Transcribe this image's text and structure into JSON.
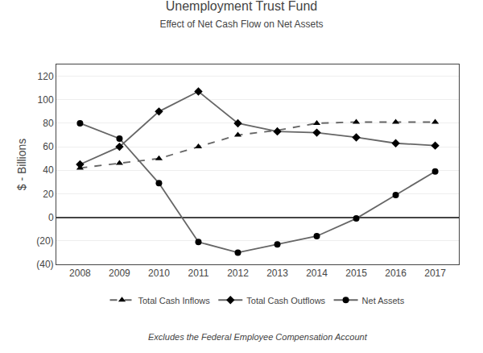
{
  "chart_data": {
    "type": "line",
    "title": "Unemployment Trust Fund",
    "subtitle": "Effect of Net Cash Flow on Net Assets",
    "annotations": [
      "Excludes the Federal Employee Compensation Account"
    ],
    "y_label": "$ - Billions",
    "x": [
      2008,
      2009,
      2010,
      2011,
      2012,
      2013,
      2014,
      2015,
      2016,
      2017
    ],
    "series": [
      {
        "name": "Total Cash Inflows",
        "color": "#666666",
        "line_style": "dash",
        "marker": "triangle-up",
        "values": [
          42,
          46,
          50,
          60,
          70,
          74,
          80,
          81,
          81,
          81
        ]
      },
      {
        "name": "Total Cash Outflows",
        "color": "#666666",
        "line_style": "solid",
        "marker": "diamond",
        "values": [
          45,
          60,
          90,
          107,
          80,
          73,
          72,
          68,
          63,
          61
        ]
      },
      {
        "name": "Net Assets",
        "color": "#666666",
        "line_style": "solid",
        "marker": "circle",
        "values": [
          80,
          67,
          29,
          -21,
          -30,
          -23,
          -16,
          -1,
          19,
          39
        ]
      }
    ],
    "xlim": [
      2007.4,
      2017.6
    ],
    "xticks": [
      2008,
      2009,
      2010,
      2011,
      2012,
      2013,
      2014,
      2015,
      2016,
      2017
    ],
    "ylim": [
      -40,
      130
    ],
    "yticks": [
      {
        "value": -40,
        "label": "(40)"
      },
      {
        "value": -20,
        "label": "(20)"
      },
      0,
      20,
      40,
      60,
      80,
      100,
      120
    ],
    "grid": "y",
    "legend": "bottom"
  }
}
